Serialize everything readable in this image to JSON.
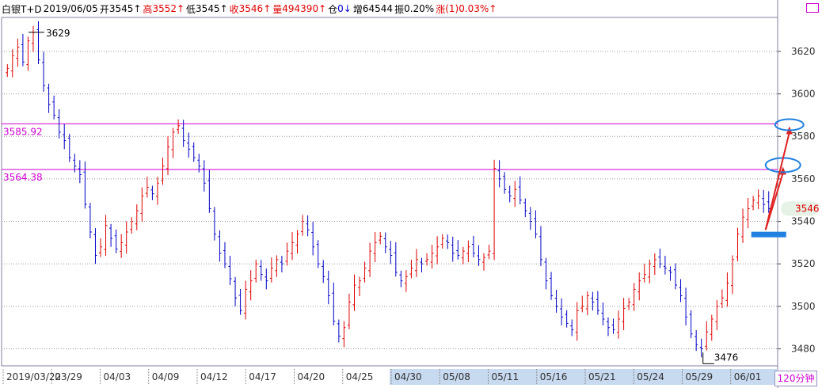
{
  "header": {
    "symbol": "白银T+D",
    "date": "2019/06/05",
    "open_label": "开",
    "open_value": "3545↑",
    "high_label": "高",
    "high_value": "3552↑",
    "low_label": "低",
    "low_value": "3545↑",
    "close_label": "收",
    "close_value": "3546↑",
    "volume_label": "量",
    "volume_value": "494390↑",
    "position_label": "仓",
    "position_value": "0↓",
    "increase_label": "增",
    "increase_value": "64544",
    "amplitude_label": "振",
    "amplitude_value": "0.20%",
    "change_label": "涨",
    "change_value": "(1)0.03%↑"
  },
  "period": "120分钟",
  "last_price_tag": "3546",
  "colors": {
    "up": "#e00000",
    "down": "#0000c8",
    "resistance": "#d000d0",
    "annotation_blue": "#2080e0",
    "arrow": "#e02020",
    "highlight_band": "#c8daf0"
  },
  "chart_data": {
    "type": "candlestick",
    "ylim": [
      3472,
      3636
    ],
    "y_ticks": [
      3480,
      3500,
      3520,
      3540,
      3560,
      3580,
      3600,
      3620
    ],
    "grid": "dotted horizontal",
    "x_labels": [
      "2019/03/22",
      "03/29",
      "04/03",
      "04/09",
      "04/12",
      "04/17",
      "04/20",
      "04/25",
      "04/30",
      "05/08",
      "05/11",
      "05/16",
      "05/21",
      "05/24",
      "05/29",
      "06/01"
    ],
    "highlighted_x_labels_from": "04/30",
    "horizontal_lines": [
      {
        "label": "3585.92",
        "value": 3585.92
      },
      {
        "label": "3564.38",
        "value": 3564.38
      }
    ],
    "marked_extremes": [
      {
        "label": "3629",
        "value": 3629
      },
      {
        "label": "3476",
        "value": 3476
      }
    ],
    "last_close": 3546,
    "projection_targets": [
      3565,
      3584
    ],
    "support_level": 3534,
    "close_series": [
      3612,
      3618,
      3622,
      3615,
      3625,
      3629,
      3616,
      3604,
      3595,
      3590,
      3582,
      3578,
      3570,
      3566,
      3562,
      3548,
      3535,
      3524,
      3528,
      3538,
      3532,
      3527,
      3530,
      3535,
      3540,
      3545,
      3552,
      3556,
      3553,
      3558,
      3566,
      3575,
      3582,
      3585,
      3578,
      3574,
      3570,
      3566,
      3558,
      3546,
      3534,
      3525,
      3520,
      3513,
      3504,
      3498,
      3508,
      3512,
      3520,
      3515,
      3512,
      3518,
      3522,
      3520,
      3526,
      3530,
      3534,
      3540,
      3536,
      3528,
      3520,
      3514,
      3505,
      3493,
      3486,
      3490,
      3502,
      3510,
      3512,
      3518,
      3526,
      3530,
      3533,
      3528,
      3524,
      3516,
      3512,
      3514,
      3518,
      3522,
      3520,
      3522,
      3525,
      3528,
      3532,
      3530,
      3525,
      3524,
      3526,
      3528,
      3525,
      3522,
      3523,
      3526,
      3565,
      3560,
      3555,
      3552,
      3555,
      3550,
      3545,
      3540,
      3534,
      3522,
      3512,
      3505,
      3500,
      3495,
      3492,
      3489,
      3498,
      3500,
      3505,
      3502,
      3498,
      3494,
      3490,
      3489,
      3494,
      3499,
      3502,
      3508,
      3512,
      3515,
      3520,
      3522,
      3520,
      3518,
      3516,
      3510,
      3505,
      3495,
      3487,
      3482,
      3480,
      3488,
      3494,
      3500,
      3504,
      3511,
      3522,
      3534,
      3542,
      3546,
      3550,
      3552,
      3548,
      3546
    ]
  }
}
